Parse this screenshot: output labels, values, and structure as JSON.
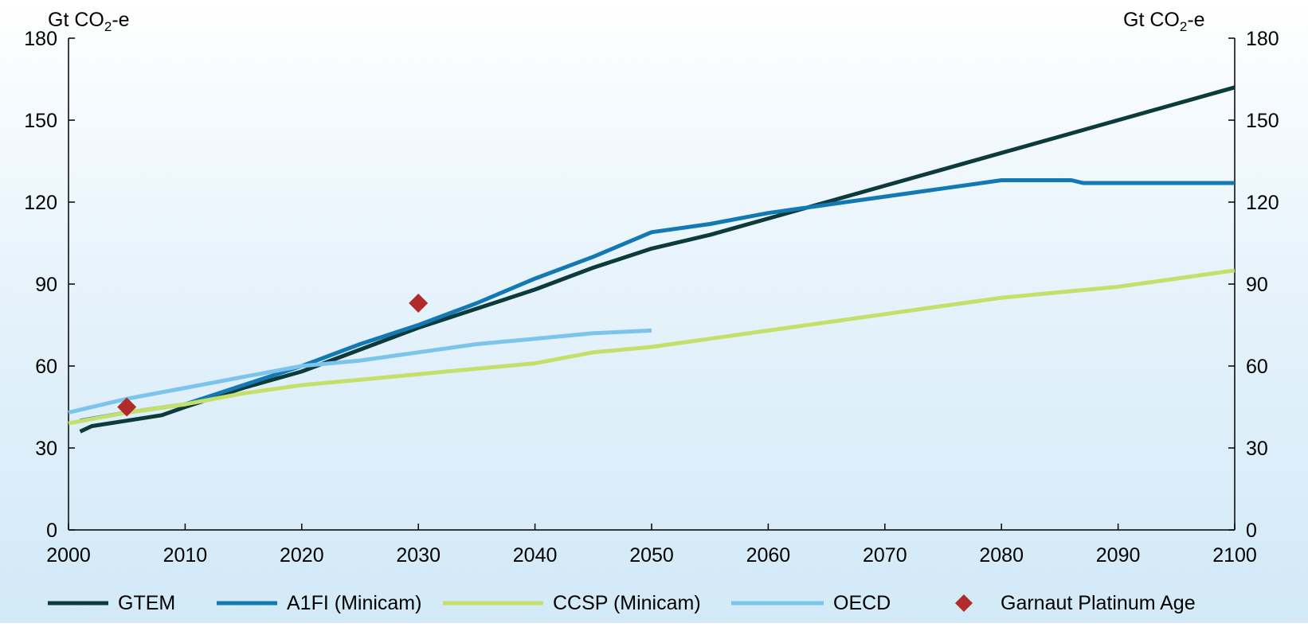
{
  "chart_data": {
    "type": "line",
    "title": "",
    "ylabel_left": "Gt CO2-e",
    "ylabel_right": "Gt CO2-e",
    "xlabel": "",
    "xlim": [
      2000,
      2100
    ],
    "ylim": [
      0,
      180
    ],
    "x_ticks": [
      "2000",
      "2010",
      "2020",
      "2030",
      "2040",
      "2050",
      "2060",
      "2070",
      "2080",
      "2090",
      "2100"
    ],
    "y_ticks": [
      "0",
      "30",
      "60",
      "90",
      "120",
      "150",
      "180"
    ],
    "grid": false,
    "legend_position": "bottom",
    "series": [
      {
        "name": "GTEM",
        "color": "#0d3b3b",
        "points": [
          [
            2001,
            36
          ],
          [
            2002,
            38
          ],
          [
            2005,
            40
          ],
          [
            2008,
            42
          ],
          [
            2010,
            45
          ],
          [
            2015,
            52
          ],
          [
            2020,
            58
          ],
          [
            2025,
            66
          ],
          [
            2030,
            74
          ],
          [
            2035,
            81
          ],
          [
            2040,
            88
          ],
          [
            2045,
            96
          ],
          [
            2050,
            103
          ],
          [
            2055,
            108
          ],
          [
            2060,
            114
          ],
          [
            2065,
            120
          ],
          [
            2070,
            126
          ],
          [
            2075,
            132
          ],
          [
            2080,
            138
          ],
          [
            2085,
            144
          ],
          [
            2090,
            150
          ],
          [
            2095,
            156
          ],
          [
            2100,
            162
          ]
        ]
      },
      {
        "name": "A1FI (Minicam)",
        "color": "#1279b5",
        "points": [
          [
            2001,
            40
          ],
          [
            2005,
            43
          ],
          [
            2010,
            46
          ],
          [
            2015,
            53
          ],
          [
            2020,
            60
          ],
          [
            2025,
            68
          ],
          [
            2030,
            75
          ],
          [
            2035,
            83
          ],
          [
            2040,
            92
          ],
          [
            2045,
            100
          ],
          [
            2050,
            109
          ],
          [
            2055,
            112
          ],
          [
            2060,
            116
          ],
          [
            2065,
            119
          ],
          [
            2070,
            122
          ],
          [
            2075,
            125
          ],
          [
            2080,
            128
          ],
          [
            2086,
            128
          ],
          [
            2087,
            127
          ],
          [
            2100,
            127
          ]
        ]
      },
      {
        "name": "CCSP (Minicam)",
        "color": "#c5e06a",
        "points": [
          [
            2000,
            39
          ],
          [
            2005,
            43
          ],
          [
            2010,
            46
          ],
          [
            2015,
            50
          ],
          [
            2020,
            53
          ],
          [
            2025,
            55
          ],
          [
            2030,
            57
          ],
          [
            2035,
            59
          ],
          [
            2040,
            61
          ],
          [
            2045,
            65
          ],
          [
            2050,
            67
          ],
          [
            2055,
            70
          ],
          [
            2060,
            73
          ],
          [
            2065,
            76
          ],
          [
            2070,
            79
          ],
          [
            2075,
            82
          ],
          [
            2080,
            85
          ],
          [
            2085,
            87
          ],
          [
            2090,
            89
          ],
          [
            2095,
            92
          ],
          [
            2100,
            95
          ]
        ]
      },
      {
        "name": "OECD",
        "color": "#7cc4ec",
        "points": [
          [
            2000,
            43
          ],
          [
            2005,
            48
          ],
          [
            2010,
            52
          ],
          [
            2015,
            56
          ],
          [
            2020,
            60
          ],
          [
            2025,
            62
          ],
          [
            2030,
            65
          ],
          [
            2035,
            68
          ],
          [
            2040,
            70
          ],
          [
            2045,
            72
          ],
          [
            2050,
            73
          ]
        ]
      }
    ],
    "markers": {
      "name": "Garnaut Platinum Age",
      "color": "#b22b2b",
      "points": [
        [
          2005,
          45
        ],
        [
          2030,
          83
        ]
      ]
    }
  }
}
